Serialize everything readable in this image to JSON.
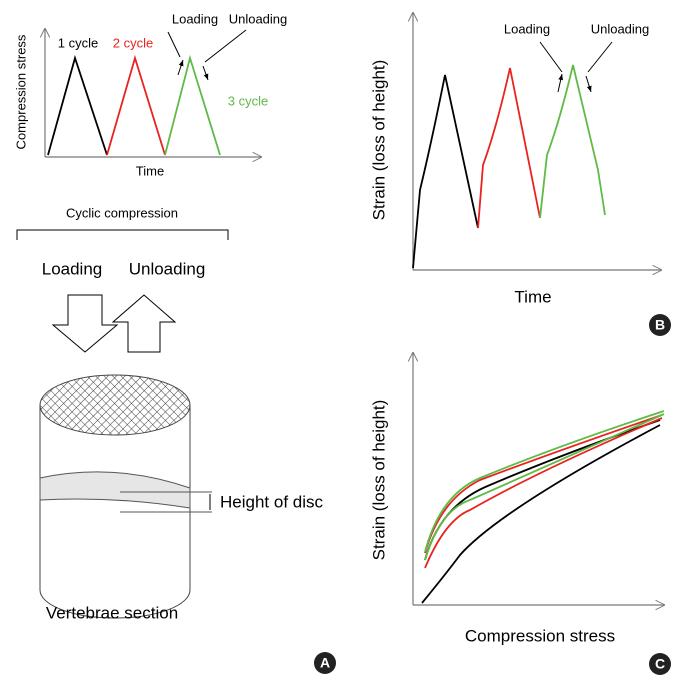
{
  "panel_a": {
    "cycle_chart": {
      "y_label": "Compression stress",
      "x_label": "Time",
      "cycle_labels": [
        "1 cycle",
        "2 cycle",
        "3 cycle"
      ],
      "loading": "Loading",
      "unloading": "Unloading"
    },
    "caption": "Cyclic compression",
    "loading": "Loading",
    "unloading": "Unloading",
    "disc_label": "Height of disc",
    "section_label": "Vertebrae section",
    "badge": "A"
  },
  "panel_b": {
    "y_label": "Strain (loss of height)",
    "x_label": "Time",
    "loading": "Loading",
    "unloading": "Unloading",
    "badge": "B"
  },
  "panel_c": {
    "y_label": "Strain (loss of height)",
    "x_label": "Compression stress",
    "badge": "C"
  }
}
